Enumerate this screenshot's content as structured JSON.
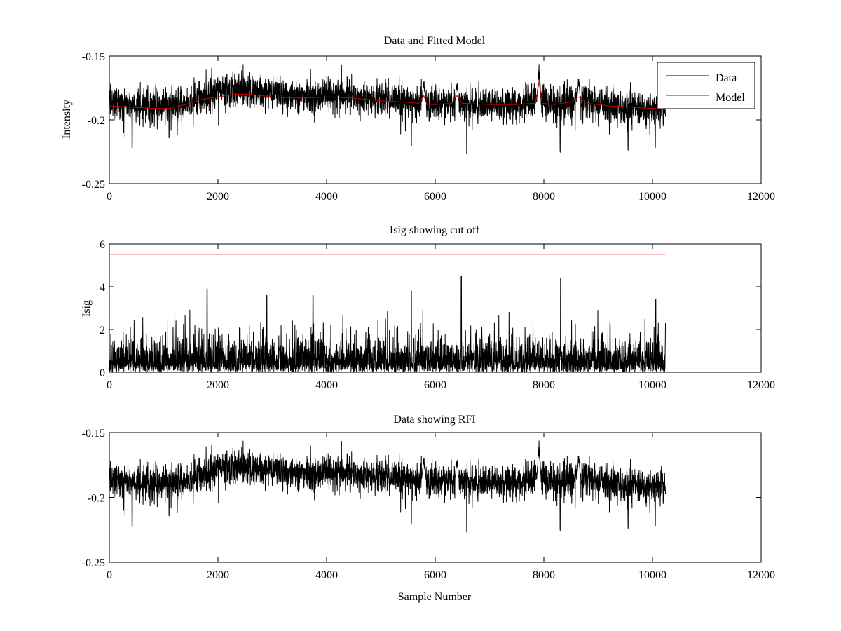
{
  "figure": {
    "background": "#ffffff"
  },
  "chart_data": [
    {
      "id": "top",
      "type": "line",
      "title": "Data and Fitted Model",
      "xlabel": "",
      "ylabel": "Intensity",
      "xlim": [
        0,
        12000
      ],
      "ylim": [
        -0.25,
        -0.15
      ],
      "y_reversed": true,
      "xticks": [
        0,
        2000,
        4000,
        6000,
        8000,
        10000,
        12000
      ],
      "xtick_labels": [
        "0",
        "2000",
        "4000",
        "6000",
        "8000",
        "10000",
        "12000"
      ],
      "yticks": [
        -0.15,
        -0.2,
        -0.25
      ],
      "ytick_labels": [
        "-0.15",
        "-0.2",
        "-0.25"
      ],
      "grid": false,
      "legend": {
        "placement": "top-right",
        "entries": [
          "Data",
          "Model"
        ]
      },
      "series": [
        {
          "name": "Data",
          "color": "#000000",
          "kind": "noisy-signal",
          "n_samples": 10240,
          "baseline_x": [
            0,
            400,
            800,
            1100,
            1500,
            1800,
            2200,
            2600,
            3000,
            3500,
            4000,
            4500,
            5000,
            5500,
            5800,
            6000,
            6400,
            6800,
            7200,
            7600,
            7900,
            8200,
            8600,
            9000,
            9500,
            10000,
            10240
          ],
          "baseline_y": [
            -0.186,
            -0.188,
            -0.189,
            -0.19,
            -0.186,
            -0.18,
            -0.176,
            -0.177,
            -0.179,
            -0.181,
            -0.181,
            -0.182,
            -0.183,
            -0.185,
            -0.186,
            -0.188,
            -0.186,
            -0.189,
            -0.188,
            -0.186,
            -0.185,
            -0.188,
            -0.186,
            -0.188,
            -0.19,
            -0.191,
            -0.19
          ],
          "spikes": [
            {
              "x": 5790,
              "y": -0.167
            },
            {
              "x": 6400,
              "y": -0.168
            },
            {
              "x": 7910,
              "y": -0.154
            },
            {
              "x": 8640,
              "y": -0.165
            }
          ],
          "dips": [
            {
              "x": 420,
              "y": -0.223
            },
            {
              "x": 1100,
              "y": -0.215
            },
            {
              "x": 5560,
              "y": -0.222
            },
            {
              "x": 6580,
              "y": -0.227
            },
            {
              "x": 7880,
              "y": -0.221
            },
            {
              "x": 8300,
              "y": -0.226
            },
            {
              "x": 9550,
              "y": -0.224
            },
            {
              "x": 10050,
              "y": -0.222
            }
          ]
        },
        {
          "name": "Model",
          "color": "#cc0000",
          "kind": "smooth",
          "x": [
            0,
            400,
            800,
            1100,
            1400,
            1700,
            2000,
            2300,
            2600,
            3000,
            3500,
            4000,
            4500,
            5000,
            5400,
            5700,
            5790,
            5850,
            6000,
            6300,
            6400,
            6500,
            7000,
            7500,
            7850,
            7910,
            7970,
            8200,
            8500,
            8640,
            8800,
            9200,
            9600,
            10000,
            10240
          ],
          "y": [
            -0.189,
            -0.19,
            -0.191,
            -0.191,
            -0.188,
            -0.184,
            -0.182,
            -0.18,
            -0.18,
            -0.182,
            -0.183,
            -0.182,
            -0.183,
            -0.185,
            -0.186,
            -0.187,
            -0.181,
            -0.188,
            -0.188,
            -0.187,
            -0.181,
            -0.187,
            -0.188,
            -0.188,
            -0.187,
            -0.17,
            -0.187,
            -0.188,
            -0.186,
            -0.182,
            -0.187,
            -0.189,
            -0.19,
            -0.191,
            -0.191
          ]
        }
      ]
    },
    {
      "id": "middle",
      "type": "line",
      "title": "Isig showing cut off",
      "xlabel": "",
      "ylabel": "Isig",
      "xlim": [
        0,
        12000
      ],
      "ylim": [
        0,
        6
      ],
      "y_reversed": false,
      "xticks": [
        0,
        2000,
        4000,
        6000,
        8000,
        10000,
        12000
      ],
      "xtick_labels": [
        "0",
        "2000",
        "4000",
        "6000",
        "8000",
        "10000",
        "12000"
      ],
      "yticks": [
        0,
        2,
        4,
        6
      ],
      "ytick_labels": [
        "0",
        "2",
        "4",
        "6"
      ],
      "grid": false,
      "series": [
        {
          "color": "#000000",
          "kind": "noisy-magnitude",
          "n_samples": 10240,
          "peaks": [
            {
              "x": 1800,
              "y": 3.9
            },
            {
              "x": 2900,
              "y": 3.6
            },
            {
              "x": 3750,
              "y": 3.6
            },
            {
              "x": 5560,
              "y": 3.8
            },
            {
              "x": 6480,
              "y": 4.5
            },
            {
              "x": 8310,
              "y": 4.4
            },
            {
              "x": 10060,
              "y": 3.4
            }
          ]
        },
        {
          "color": "#cc0000",
          "kind": "threshold",
          "x": [
            0,
            10240
          ],
          "y": [
            5.5,
            5.5
          ]
        }
      ]
    },
    {
      "id": "bottom",
      "type": "line",
      "title": "Data showing RFI",
      "xlabel": "Sample Number",
      "ylabel": "",
      "xlim": [
        0,
        12000
      ],
      "ylim": [
        -0.25,
        -0.15
      ],
      "y_reversed": true,
      "xticks": [
        0,
        2000,
        4000,
        6000,
        8000,
        10000,
        12000
      ],
      "xtick_labels": [
        "0",
        "2000",
        "4000",
        "6000",
        "8000",
        "10000",
        "12000"
      ],
      "yticks": [
        -0.15,
        -0.2,
        -0.25
      ],
      "ytick_labels": [
        "-0.15",
        "-0.2",
        "-0.25"
      ],
      "grid": false,
      "series": [
        {
          "color": "#000000",
          "kind": "noisy-signal",
          "n_samples": 10240,
          "baseline_x": [
            0,
            400,
            800,
            1100,
            1500,
            1800,
            2200,
            2600,
            3000,
            3500,
            4000,
            4500,
            5000,
            5500,
            5800,
            6000,
            6400,
            6800,
            7200,
            7600,
            7900,
            8200,
            8600,
            9000,
            9500,
            10000,
            10240
          ],
          "baseline_y": [
            -0.186,
            -0.188,
            -0.189,
            -0.19,
            -0.186,
            -0.18,
            -0.176,
            -0.177,
            -0.179,
            -0.181,
            -0.181,
            -0.182,
            -0.183,
            -0.185,
            -0.186,
            -0.188,
            -0.186,
            -0.189,
            -0.188,
            -0.186,
            -0.185,
            -0.188,
            -0.186,
            -0.188,
            -0.19,
            -0.191,
            -0.19
          ],
          "spikes": [
            {
              "x": 5790,
              "y": -0.167
            },
            {
              "x": 6400,
              "y": -0.168
            },
            {
              "x": 7910,
              "y": -0.154
            },
            {
              "x": 8640,
              "y": -0.165
            }
          ],
          "dips": [
            {
              "x": 420,
              "y": -0.223
            },
            {
              "x": 1100,
              "y": -0.215
            },
            {
              "x": 5560,
              "y": -0.222
            },
            {
              "x": 6580,
              "y": -0.227
            },
            {
              "x": 7880,
              "y": -0.221
            },
            {
              "x": 8300,
              "y": -0.226
            },
            {
              "x": 9550,
              "y": -0.224
            },
            {
              "x": 10050,
              "y": -0.222
            }
          ]
        }
      ]
    }
  ]
}
